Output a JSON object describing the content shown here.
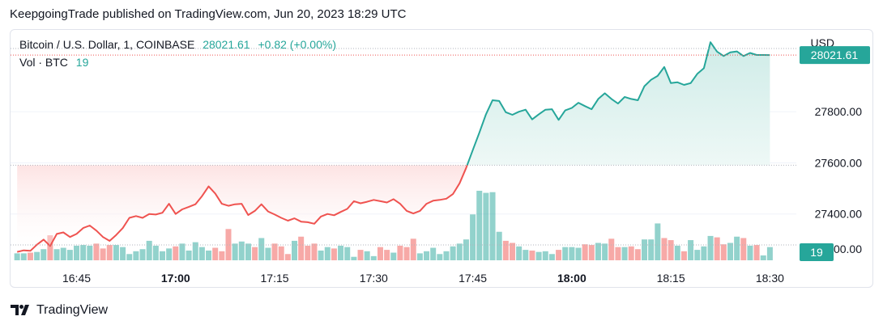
{
  "header": {
    "published_line": "KeepgoingTrade published on TradingView.com, Jun 20, 2023 18:29 UTC"
  },
  "legend": {
    "symbol": "Bitcoin / U.S. Dollar, 1, COINBASE",
    "price": "28021.61",
    "change": "+0.82 (+0.00%)",
    "volume_label": "Vol · BTC",
    "volume_value": "19"
  },
  "footer": {
    "brand": "TradingView",
    "logo_icon": "tradingview-logo-icon"
  },
  "colors": {
    "up": "#26a69a",
    "down": "#ef5350",
    "up_fill": "#e3f3f1",
    "down_fill": "#fdeaea"
  },
  "chart_data": {
    "type": "area",
    "x_ticks": [
      "16:45",
      "17:00",
      "17:15",
      "17:30",
      "17:45",
      "18:00",
      "18:15",
      "18:30"
    ],
    "bold_x_ticks": [
      "17:00",
      "18:00"
    ],
    "y_axis_unit": "USD",
    "y_ticks": [
      27400.0,
      27600.0,
      27800.0
    ],
    "y_range": [
      27200,
      28120
    ],
    "baseline": 27591,
    "last_price_label": "28021.61",
    "last_volume_label": "19",
    "x_start": "16:35",
    "x_end": "18:34",
    "price": {
      "times": [
        "16:36",
        "16:37",
        "16:38",
        "16:39",
        "16:40",
        "16:41",
        "16:42",
        "16:43",
        "16:44",
        "16:45",
        "16:46",
        "16:47",
        "16:48",
        "16:49",
        "16:50",
        "16:51",
        "16:52",
        "16:53",
        "16:54",
        "16:55",
        "16:56",
        "16:57",
        "16:58",
        "16:59",
        "17:00",
        "17:01",
        "17:02",
        "17:03",
        "17:04",
        "17:05",
        "17:06",
        "17:07",
        "17:08",
        "17:09",
        "17:10",
        "17:11",
        "17:12",
        "17:13",
        "17:14",
        "17:15",
        "17:16",
        "17:17",
        "17:18",
        "17:19",
        "17:20",
        "17:21",
        "17:22",
        "17:23",
        "17:24",
        "17:25",
        "17:26",
        "17:27",
        "17:28",
        "17:29",
        "17:30",
        "17:31",
        "17:32",
        "17:33",
        "17:34",
        "17:35",
        "17:36",
        "17:37",
        "17:38",
        "17:39",
        "17:40",
        "17:41",
        "17:42",
        "17:43",
        "17:44",
        "17:45",
        "17:46",
        "17:47",
        "17:48",
        "17:49",
        "17:50",
        "17:51",
        "17:52",
        "17:53",
        "17:54",
        "17:55",
        "17:56",
        "17:57",
        "17:58",
        "17:59",
        "18:00",
        "18:01",
        "18:02",
        "18:03",
        "18:04",
        "18:05",
        "18:06",
        "18:07",
        "18:08",
        "18:09",
        "18:10",
        "18:11",
        "18:12",
        "18:13",
        "18:14",
        "18:15",
        "18:16",
        "18:17",
        "18:18",
        "18:19",
        "18:20",
        "18:21",
        "18:22",
        "18:23",
        "18:24",
        "18:25",
        "18:26",
        "18:27",
        "18:28",
        "18:29",
        "18:30"
      ],
      "values": [
        27252,
        27258,
        27256,
        27280,
        27300,
        27275,
        27322,
        27328,
        27310,
        27322,
        27345,
        27355,
        27335,
        27310,
        27295,
        27318,
        27345,
        27385,
        27392,
        27385,
        27400,
        27398,
        27405,
        27440,
        27400,
        27418,
        27428,
        27438,
        27470,
        27508,
        27480,
        27440,
        27432,
        27438,
        27440,
        27396,
        27412,
        27438,
        27410,
        27398,
        27385,
        27374,
        27383,
        27370,
        27368,
        27362,
        27390,
        27400,
        27395,
        27408,
        27420,
        27450,
        27442,
        27448,
        27455,
        27450,
        27445,
        27458,
        27440,
        27412,
        27402,
        27412,
        27440,
        27452,
        27455,
        27460,
        27478,
        27520,
        27580,
        27650,
        27718,
        27790,
        27845,
        27842,
        27798,
        27788,
        27800,
        27808,
        27770,
        27790,
        27808,
        27810,
        27768,
        27805,
        27815,
        27835,
        27822,
        27810,
        27850,
        27872,
        27850,
        27832,
        27858,
        27850,
        27845,
        27900,
        27925,
        27940,
        27975,
        27912,
        27915,
        27905,
        27912,
        27948,
        27970,
        28072,
        28035,
        28018,
        28032,
        28036,
        28018,
        28030,
        28022,
        28022,
        28021.61
      ]
    },
    "volume": {
      "times": [
        "16:36",
        "16:37",
        "16:38",
        "16:39",
        "16:40",
        "16:41",
        "16:42",
        "16:43",
        "16:44",
        "16:45",
        "16:46",
        "16:47",
        "16:48",
        "16:49",
        "16:50",
        "16:51",
        "16:52",
        "16:53",
        "16:54",
        "16:55",
        "16:56",
        "16:57",
        "16:58",
        "16:59",
        "17:00",
        "17:01",
        "17:02",
        "17:03",
        "17:04",
        "17:05",
        "17:06",
        "17:07",
        "17:08",
        "17:09",
        "17:10",
        "17:11",
        "17:12",
        "17:13",
        "17:14",
        "17:15",
        "17:16",
        "17:17",
        "17:18",
        "17:19",
        "17:20",
        "17:21",
        "17:22",
        "17:23",
        "17:24",
        "17:25",
        "17:26",
        "17:27",
        "17:28",
        "17:29",
        "17:30",
        "17:31",
        "17:32",
        "17:33",
        "17:34",
        "17:35",
        "17:36",
        "17:37",
        "17:38",
        "17:39",
        "17:40",
        "17:41",
        "17:42",
        "17:43",
        "17:44",
        "17:45",
        "17:46",
        "17:47",
        "17:48",
        "17:49",
        "17:50",
        "17:51",
        "17:52",
        "17:53",
        "17:54",
        "17:55",
        "17:56",
        "17:57",
        "17:58",
        "17:59",
        "18:00",
        "18:01",
        "18:02",
        "18:03",
        "18:04",
        "18:05",
        "18:06",
        "18:07",
        "18:08",
        "18:09",
        "18:10",
        "18:11",
        "18:12",
        "18:13",
        "18:14",
        "18:15",
        "18:16",
        "18:17",
        "18:18",
        "18:19",
        "18:20",
        "18:21",
        "18:22",
        "18:23",
        "18:24",
        "18:25",
        "18:26",
        "18:27",
        "18:28",
        "18:29",
        "18:30"
      ],
      "values": [
        10,
        10,
        11,
        12,
        16,
        36,
        16,
        18,
        15,
        21,
        22,
        21,
        24,
        17,
        22,
        22,
        19,
        9,
        13,
        16,
        28,
        21,
        13,
        17,
        20,
        24,
        14,
        26,
        19,
        14,
        18,
        13,
        45,
        24,
        27,
        24,
        19,
        32,
        18,
        24,
        20,
        9,
        28,
        34,
        21,
        24,
        14,
        19,
        17,
        21,
        19,
        5,
        15,
        13,
        6,
        19,
        15,
        11,
        21,
        19,
        31,
        10,
        13,
        18,
        9,
        13,
        20,
        24,
        30,
        66,
        100,
        97,
        98,
        41,
        28,
        25,
        20,
        15,
        14,
        12,
        13,
        9,
        15,
        19,
        19,
        18,
        23,
        22,
        25,
        24,
        31,
        19,
        19,
        20,
        16,
        30,
        30,
        53,
        32,
        29,
        21,
        13,
        29,
        15,
        20,
        35,
        33,
        23,
        25,
        34,
        32,
        21,
        22,
        7,
        19
      ],
      "directions": [
        "up",
        "up",
        "down",
        "up",
        "up",
        "down",
        "up",
        "up",
        "up",
        "up",
        "up",
        "up",
        "down",
        "down",
        "down",
        "up",
        "up",
        "up",
        "up",
        "up",
        "up",
        "up",
        "up",
        "up",
        "down",
        "up",
        "up",
        "up",
        "up",
        "up",
        "down",
        "down",
        "down",
        "up",
        "up",
        "up",
        "down",
        "up",
        "up",
        "down",
        "down",
        "down",
        "up",
        "down",
        "down",
        "down",
        "up",
        "up",
        "down",
        "up",
        "up",
        "up",
        "down",
        "up",
        "up",
        "down",
        "down",
        "up",
        "down",
        "down",
        "down",
        "up",
        "up",
        "up",
        "up",
        "up",
        "up",
        "up",
        "up",
        "up",
        "up",
        "up",
        "up",
        "up",
        "down",
        "down",
        "up",
        "up",
        "down",
        "up",
        "up",
        "up",
        "down",
        "up",
        "up",
        "up",
        "down",
        "down",
        "up",
        "up",
        "down",
        "down",
        "up",
        "down",
        "down",
        "up",
        "up",
        "up",
        "down",
        "down",
        "up",
        "down",
        "up",
        "up",
        "up",
        "up",
        "down",
        "down",
        "up",
        "up",
        "down",
        "up",
        "down",
        "up",
        "up"
      ]
    }
  }
}
